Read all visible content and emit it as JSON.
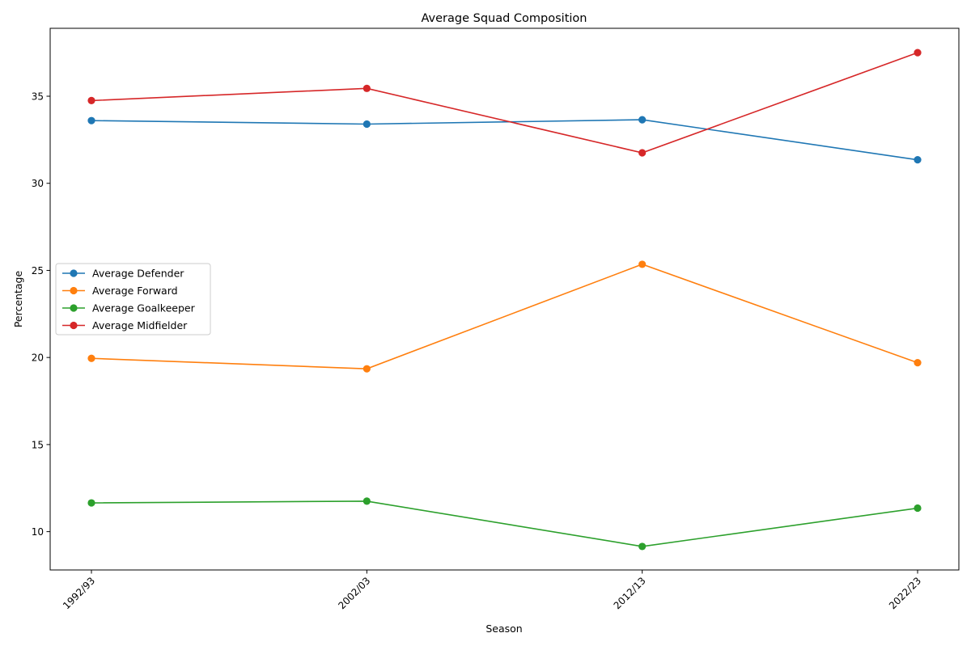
{
  "chart_data": {
    "type": "line",
    "title": "Average Squad Composition",
    "xlabel": "Season",
    "ylabel": "Percentage",
    "categories": [
      "1992/93",
      "2002/03",
      "2012/13",
      "2022/23"
    ],
    "ylim": [
      7.8,
      38.9
    ],
    "yticks": [
      10,
      15,
      20,
      25,
      30,
      35
    ],
    "grid": false,
    "legend_position": "center-left",
    "series": [
      {
        "name": "Average Defender",
        "color": "#1f77b4",
        "values": [
          33.6,
          33.4,
          33.65,
          31.35
        ]
      },
      {
        "name": "Average Forward",
        "color": "#ff7f0e",
        "values": [
          19.95,
          19.35,
          25.35,
          19.7
        ]
      },
      {
        "name": "Average Goalkeeper",
        "color": "#2ca02c",
        "values": [
          11.65,
          11.75,
          9.15,
          11.35
        ]
      },
      {
        "name": "Average Midfielder",
        "color": "#d62728",
        "values": [
          34.75,
          35.45,
          31.75,
          37.5
        ]
      }
    ]
  }
}
